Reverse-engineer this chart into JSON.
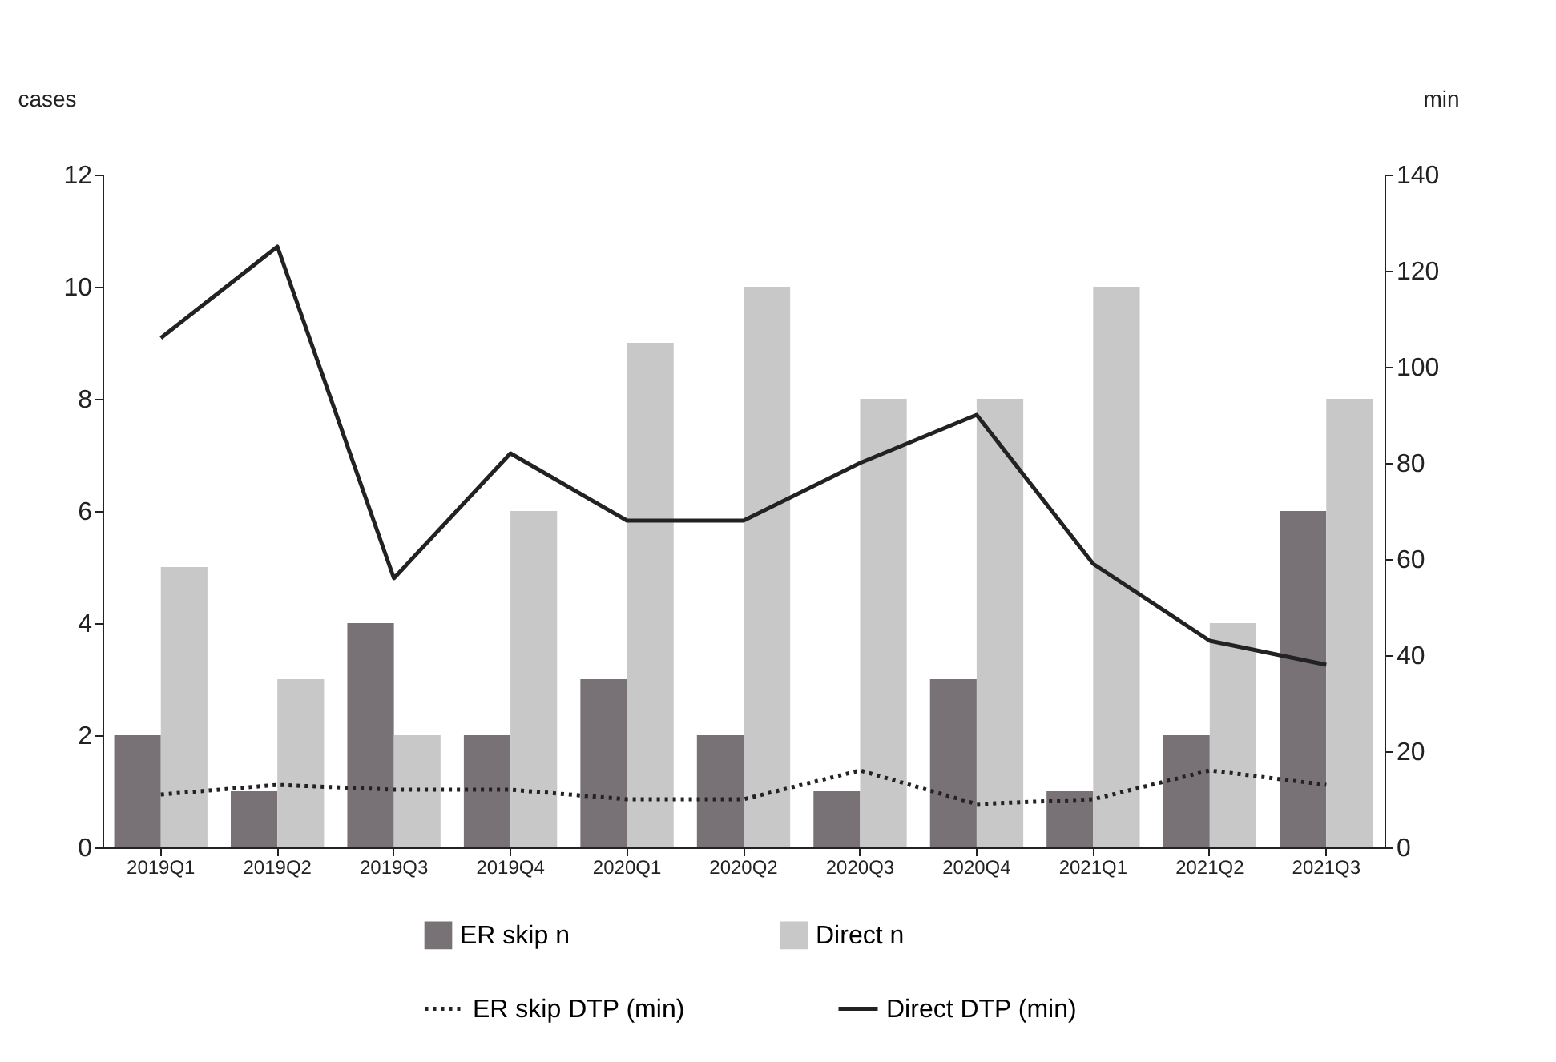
{
  "chart_data": {
    "type": "bar",
    "ylabel": "cases",
    "y2label": "min",
    "categories": [
      "2019Q1",
      "2019Q2",
      "2019Q3",
      "2019Q4",
      "2020Q1",
      "2020Q2",
      "2020Q3",
      "2020Q4",
      "2021Q1",
      "2021Q2",
      "2021Q3"
    ],
    "series": [
      {
        "name": "ER skip n",
        "color": "#787276",
        "values": [
          2,
          1,
          4,
          2,
          3,
          2,
          1,
          3,
          1,
          2,
          6
        ]
      },
      {
        "name": "Direct n",
        "color": "#c8c8c8",
        "values": [
          5,
          3,
          2,
          6,
          9,
          10,
          8,
          8,
          10,
          4,
          8
        ]
      },
      {
        "name": "ER skip DTP (min)",
        "type": "line",
        "axis": "y2",
        "color": "#222222",
        "line_style": "dotted",
        "values": [
          11,
          13,
          12,
          12,
          10,
          10,
          16,
          9,
          10,
          16,
          13
        ]
      },
      {
        "name": "Direct DTP (min)",
        "type": "line",
        "axis": "y2",
        "color": "#222222",
        "line_style": "solid",
        "values": [
          106,
          125,
          56,
          82,
          68,
          68,
          80,
          90,
          59,
          43,
          38
        ]
      }
    ],
    "ylim": [
      0,
      12
    ],
    "yticks": [
      0,
      2,
      4,
      6,
      8,
      10,
      12
    ],
    "y2lim": [
      0,
      140
    ],
    "y2ticks": [
      0,
      20,
      40,
      60,
      80,
      100,
      120,
      140
    ],
    "grid": false,
    "legend": "bottom"
  }
}
